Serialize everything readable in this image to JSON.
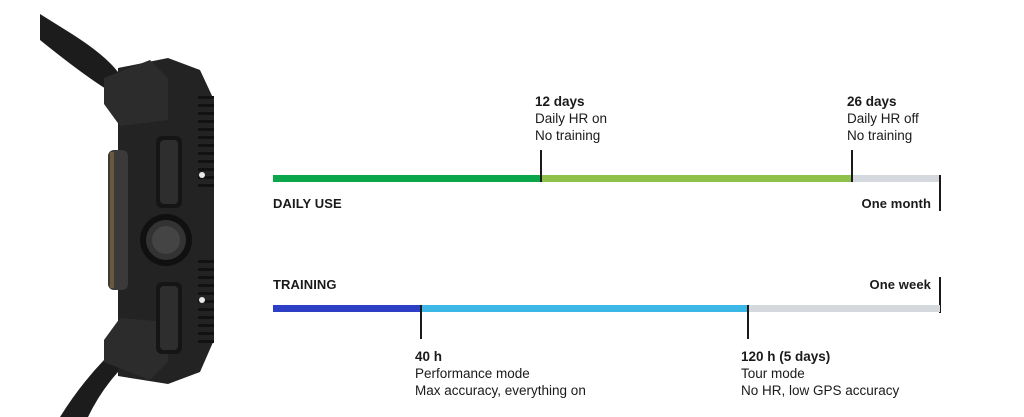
{
  "daily_use": {
    "label": "DAILY USE",
    "end_label": "One month",
    "markers": [
      {
        "title": "12 days",
        "line1": "Daily HR on",
        "line2": "No training"
      },
      {
        "title": "26 days",
        "line1": "Daily HR off",
        "line2": "No training"
      }
    ],
    "colors": {
      "segment1": "#0aa64a",
      "segment2": "#8fc04a",
      "rest": "#d5d8dc"
    }
  },
  "training": {
    "label": "TRAINING",
    "end_label": "One week",
    "markers": [
      {
        "title": "40 h",
        "line1": "Performance mode",
        "line2": "Max accuracy, everything on"
      },
      {
        "title": "120 h (5 days)",
        "line1": "Tour mode",
        "line2": "No HR, low GPS accuracy"
      }
    ],
    "colors": {
      "segment1": "#2d3fc4",
      "segment2": "#3db8e6",
      "rest": "#d5d8dc"
    }
  }
}
